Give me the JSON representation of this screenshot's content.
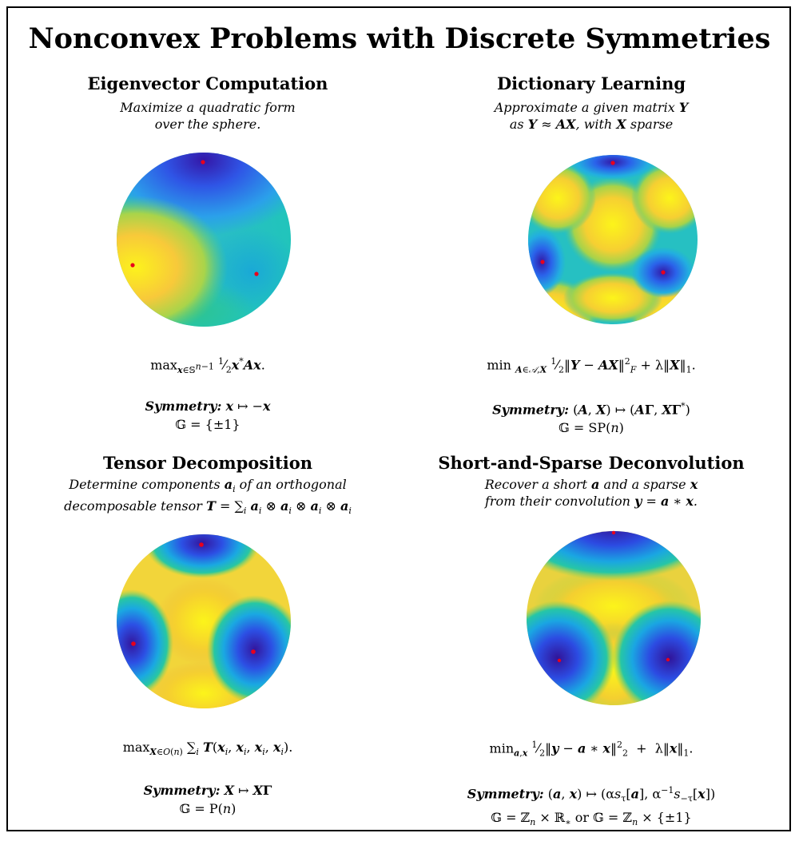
{
  "title": "Nonconvex Problems with Discrete Symmetries",
  "panels": [
    {
      "title": "Eigenvector Computation",
      "desc_line1": "Maximize a quadratic form",
      "desc_line2": "over the sphere.",
      "formula": "max_{x∈S^{n−1}} ½ x*Ax.",
      "symmetry_label": "Symmetry:",
      "symmetry": "x ↦ −x",
      "group": "G = {±1}"
    },
    {
      "title": "Dictionary Learning",
      "desc_line1": "Approximate a given matrix Y",
      "desc_line2": "as Y ≈ AX, with X sparse",
      "formula": "min_{A∈A,X} ½‖Y − AX‖²_F + λ‖X‖₁.",
      "symmetry_label": "Symmetry:",
      "symmetry": "(A, X) ↦ (AΓ, XΓ*)",
      "group": "G = SP(n)"
    },
    {
      "title": "Tensor Decomposition",
      "desc_line1": "Determine components a_i of an orthogonal",
      "desc_line2": "decomposable tensor T = Σ_i a_i ⊗ a_i ⊗ a_i ⊗ a_i",
      "formula": "max_{X∈O(n)} Σ_i T(x_i, x_i, x_i, x_i).",
      "symmetry_label": "Symmetry:",
      "symmetry": "X ↦ XΓ",
      "group": "G = P(n)"
    },
    {
      "title": "Short-and-Sparse Deconvolution",
      "desc_line1": "Recover a short a and a sparse x",
      "desc_line2": "from their convolution y = a ∗ x.",
      "formula": "min_{a,x} ½‖y − a ∗ x‖²₂ + λ‖x‖₁.",
      "symmetry_label": "Symmetry:",
      "symmetry": "(a, x) ↦ (αs_τ[a], α⁻¹s_{−τ}[x])",
      "group": "G = Z_n × R_* or G = Z_n × {±1}"
    }
  ],
  "colors": {
    "dark_blue": "#3b1fb0",
    "blue": "#2b78f0",
    "cyan": "#19c3c0",
    "green": "#8fd24a",
    "yellow": "#f8f01e",
    "orange": "#f5b332",
    "marker": "#e8001c"
  }
}
